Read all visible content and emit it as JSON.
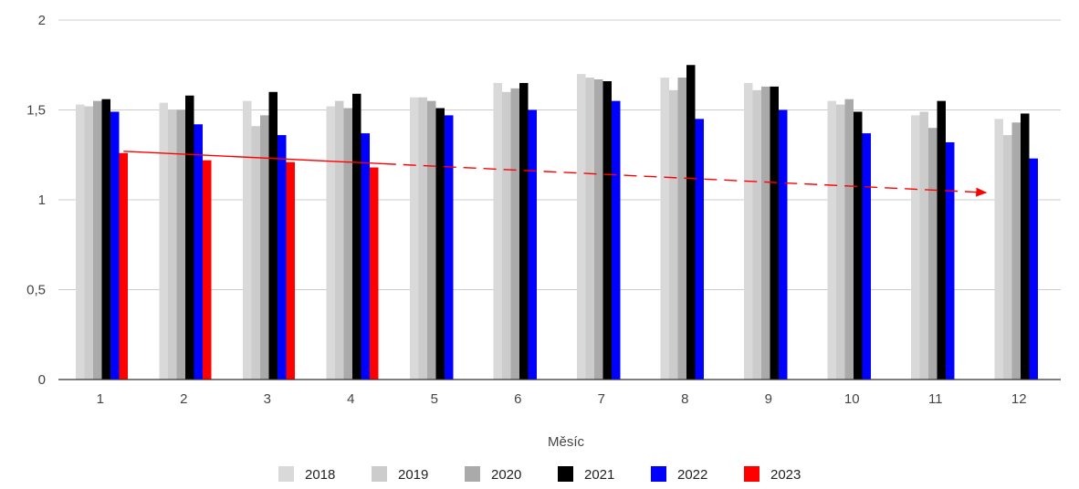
{
  "chart_data": {
    "type": "bar",
    "title": "",
    "xlabel": "Měsíc",
    "ylabel": "",
    "categories": [
      "1",
      "2",
      "3",
      "4",
      "5",
      "6",
      "7",
      "8",
      "9",
      "10",
      "11",
      "12"
    ],
    "ylim": [
      0,
      2
    ],
    "yticks": [
      0,
      0.5,
      1,
      1.5,
      2
    ],
    "ytick_labels": [
      "0",
      "0,5",
      "1",
      "1,5",
      "2"
    ],
    "grid": true,
    "legend_position": "bottom",
    "series": [
      {
        "name": "2018",
        "color": "#d9d9d9",
        "values": [
          1.53,
          1.54,
          1.55,
          1.52,
          1.57,
          1.65,
          1.7,
          1.68,
          1.65,
          1.55,
          1.47,
          1.45
        ]
      },
      {
        "name": "2019",
        "color": "#cccccc",
        "values": [
          1.52,
          1.5,
          1.41,
          1.55,
          1.57,
          1.6,
          1.68,
          1.61,
          1.61,
          1.53,
          1.49,
          1.36
        ]
      },
      {
        "name": "2020",
        "color": "#aaaaaa",
        "values": [
          1.55,
          1.5,
          1.47,
          1.51,
          1.55,
          1.62,
          1.67,
          1.68,
          1.63,
          1.56,
          1.4,
          1.43
        ]
      },
      {
        "name": "2021",
        "color": "#000000",
        "values": [
          1.56,
          1.58,
          1.6,
          1.59,
          1.51,
          1.65,
          1.66,
          1.75,
          1.63,
          1.49,
          1.55,
          1.48
        ]
      },
      {
        "name": "2022",
        "color": "#0000ff",
        "values": [
          1.49,
          1.42,
          1.36,
          1.37,
          1.47,
          1.5,
          1.55,
          1.45,
          1.5,
          1.37,
          1.32,
          1.23
        ]
      },
      {
        "name": "2023",
        "color": "#ff0000",
        "values": [
          1.26,
          1.22,
          1.21,
          1.18,
          null,
          null,
          null,
          null,
          null,
          null,
          null,
          null
        ]
      }
    ],
    "annotations": [
      {
        "type": "trend-arrow",
        "color": "#ff0000",
        "from": {
          "x": "1",
          "y": 1.27
        },
        "to": {
          "x": "12",
          "y": 1.04
        }
      }
    ]
  }
}
